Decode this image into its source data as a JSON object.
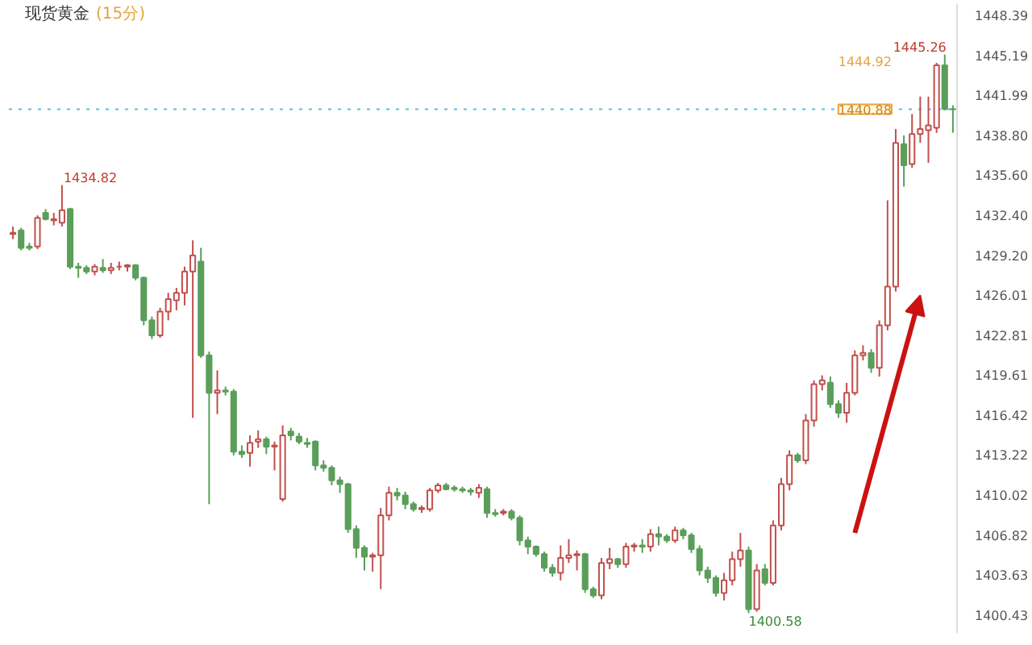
{
  "chart_data": {
    "type": "candlestick",
    "title": "现货黄金",
    "subtitle": "(15分)",
    "categories": [
      null,
      null,
      null,
      null,
      null,
      null,
      null,
      null,
      null,
      null,
      null,
      null,
      null,
      null,
      null,
      null,
      null,
      null,
      null,
      null,
      null,
      null,
      null,
      null,
      null,
      null,
      null,
      null,
      null,
      null,
      null,
      null,
      null,
      null,
      null,
      null,
      null,
      null,
      null,
      null,
      null,
      null,
      null,
      null,
      null,
      null,
      null,
      null,
      null,
      null,
      null,
      null,
      null,
      null,
      null,
      null,
      null,
      null,
      null,
      null,
      null,
      null,
      null,
      null,
      null,
      null,
      null,
      null,
      null,
      null,
      null,
      null,
      null,
      null,
      null,
      null,
      null,
      null,
      null,
      null,
      null,
      null,
      null,
      null,
      null,
      null,
      null,
      null,
      null,
      null,
      null,
      null,
      null,
      null,
      null,
      null,
      null,
      null,
      null,
      null,
      null,
      null,
      null,
      null,
      null,
      null,
      null,
      null,
      null,
      null,
      null,
      null,
      null,
      null,
      null,
      null
    ],
    "ohlc": [
      [
        1430.9,
        1431.5,
        1430.5,
        1431.0
      ],
      [
        1431.2,
        1431.4,
        1429.6,
        1429.8
      ],
      [
        1429.9,
        1430.2,
        1429.6,
        1429.8
      ],
      [
        1429.9,
        1432.4,
        1429.7,
        1432.2
      ],
      [
        1432.6,
        1432.9,
        1432.0,
        1432.1
      ],
      [
        1432.0,
        1432.6,
        1431.6,
        1432.1
      ],
      [
        1431.8,
        1434.82,
        1431.5,
        1432.8
      ],
      [
        1432.9,
        1433.0,
        1428.1,
        1428.3
      ],
      [
        1428.3,
        1428.6,
        1427.4,
        1428.2
      ],
      [
        1428.2,
        1428.4,
        1427.7,
        1427.9
      ],
      [
        1427.9,
        1428.5,
        1427.6,
        1428.3
      ],
      [
        1428.2,
        1428.9,
        1427.8,
        1428.0
      ],
      [
        1428.0,
        1428.6,
        1427.7,
        1428.2
      ],
      [
        1428.3,
        1428.7,
        1428.0,
        1428.3
      ],
      [
        1428.3,
        1428.5,
        1427.9,
        1428.4
      ],
      [
        1428.4,
        1428.5,
        1427.2,
        1427.4
      ],
      [
        1427.4,
        1427.5,
        1423.6,
        1424.0
      ],
      [
        1424.0,
        1424.3,
        1422.5,
        1422.8
      ],
      [
        1422.8,
        1425.0,
        1422.6,
        1424.7
      ],
      [
        1424.7,
        1426.2,
        1424.0,
        1425.7
      ],
      [
        1425.6,
        1426.6,
        1424.8,
        1426.2
      ],
      [
        1426.2,
        1428.3,
        1425.2,
        1427.9
      ],
      [
        1427.9,
        1430.4,
        1416.2,
        1429.2
      ],
      [
        1428.7,
        1429.8,
        1421.0,
        1421.2
      ],
      [
        1421.2,
        1421.5,
        1409.3,
        1418.2
      ],
      [
        1418.2,
        1420.0,
        1416.5,
        1418.4
      ],
      [
        1418.4,
        1418.7,
        1418.0,
        1418.3
      ],
      [
        1418.3,
        1418.5,
        1413.2,
        1413.5
      ],
      [
        1413.5,
        1414.0,
        1413.0,
        1413.3
      ],
      [
        1413.4,
        1414.8,
        1412.3,
        1414.2
      ],
      [
        1414.3,
        1415.2,
        1413.8,
        1414.5
      ],
      [
        1414.5,
        1414.7,
        1413.3,
        1413.9
      ],
      [
        1413.9,
        1414.3,
        1412.0,
        1414.0
      ],
      [
        1409.7,
        1415.6,
        1409.5,
        1414.8
      ],
      [
        1415.1,
        1415.4,
        1414.4,
        1414.8
      ],
      [
        1414.7,
        1415.0,
        1414.1,
        1414.3
      ],
      [
        1414.2,
        1414.6,
        1413.8,
        1414.1
      ],
      [
        1414.3,
        1414.4,
        1412.0,
        1412.4
      ],
      [
        1412.4,
        1412.8,
        1411.9,
        1412.2
      ],
      [
        1412.2,
        1412.4,
        1410.8,
        1411.2
      ],
      [
        1411.2,
        1411.5,
        1410.2,
        1410.9
      ],
      [
        1410.9,
        1411.0,
        1407.0,
        1407.3
      ],
      [
        1407.3,
        1407.6,
        1405.0,
        1405.8
      ],
      [
        1405.8,
        1406.0,
        1404.0,
        1405.1
      ],
      [
        1405.1,
        1405.4,
        1403.9,
        1405.2
      ],
      [
        1405.2,
        1409.0,
        1402.5,
        1408.4
      ],
      [
        1408.4,
        1410.7,
        1408.0,
        1410.2
      ],
      [
        1410.2,
        1410.6,
        1409.6,
        1410.0
      ],
      [
        1410.0,
        1410.3,
        1408.9,
        1409.3
      ],
      [
        1409.3,
        1409.5,
        1408.7,
        1408.9
      ],
      [
        1408.9,
        1409.2,
        1408.6,
        1409.0
      ],
      [
        1408.9,
        1410.6,
        1408.7,
        1410.4
      ],
      [
        1410.4,
        1411.0,
        1410.2,
        1410.8
      ],
      [
        1410.8,
        1411.0,
        1410.4,
        1410.5
      ],
      [
        1410.6,
        1410.8,
        1410.3,
        1410.5
      ],
      [
        1410.5,
        1410.7,
        1410.2,
        1410.4
      ],
      [
        1410.4,
        1410.6,
        1410.0,
        1410.3
      ],
      [
        1410.2,
        1410.9,
        1409.8,
        1410.6
      ],
      [
        1410.5,
        1410.7,
        1408.2,
        1408.6
      ],
      [
        1408.6,
        1408.9,
        1408.3,
        1408.5
      ],
      [
        1408.6,
        1408.9,
        1408.4,
        1408.7
      ],
      [
        1408.7,
        1408.9,
        1408.0,
        1408.2
      ],
      [
        1408.2,
        1408.4,
        1406.0,
        1406.4
      ],
      [
        1406.4,
        1406.7,
        1405.3,
        1405.9
      ],
      [
        1405.9,
        1406.0,
        1405.1,
        1405.3
      ],
      [
        1405.3,
        1405.5,
        1403.9,
        1404.2
      ],
      [
        1404.2,
        1404.5,
        1403.5,
        1403.8
      ],
      [
        1403.8,
        1406.0,
        1403.2,
        1405.0
      ],
      [
        1405.0,
        1406.5,
        1404.6,
        1405.2
      ],
      [
        1405.2,
        1405.6,
        1404.0,
        1405.3
      ],
      [
        1405.3,
        1405.4,
        1402.2,
        1402.5
      ],
      [
        1402.5,
        1402.7,
        1401.8,
        1402.0
      ],
      [
        1402.0,
        1405.0,
        1401.7,
        1404.6
      ],
      [
        1404.6,
        1405.8,
        1404.1,
        1404.9
      ],
      [
        1404.9,
        1405.0,
        1404.2,
        1404.5
      ],
      [
        1404.5,
        1406.2,
        1404.2,
        1405.9
      ],
      [
        1405.9,
        1406.2,
        1405.5,
        1406.0
      ],
      [
        1406.0,
        1406.5,
        1405.4,
        1405.9
      ],
      [
        1405.9,
        1407.3,
        1405.5,
        1406.9
      ],
      [
        1406.9,
        1407.5,
        1406.0,
        1406.7
      ],
      [
        1406.7,
        1406.9,
        1406.2,
        1406.4
      ],
      [
        1406.4,
        1407.5,
        1406.2,
        1407.2
      ],
      [
        1407.2,
        1407.4,
        1406.5,
        1406.8
      ],
      [
        1406.8,
        1407.0,
        1405.4,
        1405.7
      ],
      [
        1405.7,
        1406.0,
        1403.6,
        1404.0
      ],
      [
        1404.0,
        1404.3,
        1403.0,
        1403.4
      ],
      [
        1403.4,
        1403.6,
        1401.9,
        1402.2
      ],
      [
        1402.2,
        1403.8,
        1401.6,
        1403.2
      ],
      [
        1403.2,
        1405.5,
        1402.8,
        1404.9
      ],
      [
        1404.9,
        1407.0,
        1404.3,
        1405.6
      ],
      [
        1405.6,
        1405.9,
        1400.58,
        1400.9
      ],
      [
        1400.9,
        1404.5,
        1400.7,
        1404.0
      ],
      [
        1404.1,
        1404.5,
        1402.8,
        1403.0
      ],
      [
        1403.0,
        1408.0,
        1402.8,
        1407.6
      ],
      [
        1407.6,
        1411.4,
        1407.2,
        1410.9
      ],
      [
        1410.9,
        1413.6,
        1410.4,
        1413.2
      ],
      [
        1413.2,
        1413.4,
        1412.6,
        1412.8
      ],
      [
        1412.8,
        1416.5,
        1412.5,
        1416.0
      ],
      [
        1416.0,
        1419.2,
        1415.5,
        1418.9
      ],
      [
        1418.9,
        1419.6,
        1418.4,
        1419.2
      ],
      [
        1419.0,
        1419.5,
        1417.0,
        1417.3
      ],
      [
        1417.3,
        1417.6,
        1416.2,
        1416.6
      ],
      [
        1416.6,
        1419.0,
        1415.8,
        1418.2
      ],
      [
        1418.2,
        1421.6,
        1418.0,
        1421.2
      ],
      [
        1421.2,
        1422.0,
        1420.8,
        1421.4
      ],
      [
        1421.4,
        1421.7,
        1419.8,
        1420.2
      ],
      [
        1420.2,
        1424.0,
        1419.5,
        1423.6
      ],
      [
        1423.6,
        1433.6,
        1423.2,
        1426.7
      ],
      [
        1426.7,
        1439.3,
        1426.3,
        1438.2
      ],
      [
        1438.1,
        1438.8,
        1434.7,
        1436.4
      ],
      [
        1436.5,
        1440.5,
        1436.2,
        1438.9
      ],
      [
        1438.9,
        1441.9,
        1438.2,
        1439.3
      ],
      [
        1439.2,
        1441.9,
        1436.6,
        1439.6
      ],
      [
        1439.4,
        1444.6,
        1439.0,
        1444.4
      ],
      [
        1444.4,
        1445.26,
        1440.8,
        1440.9
      ],
      [
        1440.9,
        1441.2,
        1439.0,
        1440.88
      ]
    ],
    "colors": [
      "#c0504d",
      "#5a9e5a",
      "#5a9e5a",
      "#c0504d",
      "#5a9e5a",
      "#c0504d",
      "#c0504d",
      "#5a9e5a",
      "#5a9e5a",
      "#5a9e5a",
      "#c0504d",
      "#5a9e5a",
      "#c0504d",
      "#c0504d",
      "#c0504d",
      "#5a9e5a",
      "#5a9e5a",
      "#5a9e5a",
      "#c0504d",
      "#c0504d",
      "#c0504d",
      "#c0504d",
      "#c0504d",
      "#5a9e5a",
      "#5a9e5a",
      "#c0504d",
      "#5a9e5a",
      "#5a9e5a",
      "#5a9e5a",
      "#c0504d",
      "#c0504d",
      "#5a9e5a",
      "#c0504d",
      "#c0504d",
      "#5a9e5a",
      "#5a9e5a",
      "#5a9e5a",
      "#5a9e5a",
      "#5a9e5a",
      "#5a9e5a",
      "#5a9e5a",
      "#5a9e5a",
      "#5a9e5a",
      "#5a9e5a",
      "#c0504d",
      "#c0504d",
      "#c0504d",
      "#5a9e5a",
      "#5a9e5a",
      "#5a9e5a",
      "#c0504d",
      "#c0504d",
      "#c0504d",
      "#5a9e5a",
      "#5a9e5a",
      "#5a9e5a",
      "#5a9e5a",
      "#c0504d",
      "#5a9e5a",
      "#5a9e5a",
      "#c0504d",
      "#5a9e5a",
      "#5a9e5a",
      "#5a9e5a",
      "#5a9e5a",
      "#5a9e5a",
      "#5a9e5a",
      "#c0504d",
      "#c0504d",
      "#c0504d",
      "#5a9e5a",
      "#5a9e5a",
      "#c0504d",
      "#c0504d",
      "#5a9e5a",
      "#c0504d",
      "#c0504d",
      "#5a9e5a",
      "#c0504d",
      "#5a9e5a",
      "#5a9e5a",
      "#c0504d",
      "#5a9e5a",
      "#5a9e5a",
      "#5a9e5a",
      "#5a9e5a",
      "#5a9e5a",
      "#c0504d",
      "#c0504d",
      "#c0504d",
      "#5a9e5a",
      "#c0504d",
      "#5a9e5a",
      "#c0504d",
      "#c0504d",
      "#c0504d",
      "#5a9e5a",
      "#c0504d",
      "#c0504d",
      "#c0504d",
      "#5a9e5a",
      "#5a9e5a",
      "#c0504d",
      "#c0504d",
      "#c0504d",
      "#5a9e5a",
      "#c0504d",
      "#c0504d",
      "#c0504d",
      "#5a9e5a",
      "#c0504d",
      "#c0504d",
      "#c0504d",
      "#c0504d",
      "#5a9e5a",
      "#5a9e5a"
    ],
    "ylim": [
      1399.0,
      1449.3
    ],
    "yticks": [
      {
        "value": 1448.39,
        "label": "1448.39"
      },
      {
        "value": 1445.19,
        "label": "1445.19"
      },
      {
        "value": 1441.99,
        "label": "1441.99"
      },
      {
        "value": 1438.8,
        "label": "1438.80"
      },
      {
        "value": 1435.6,
        "label": "1435.60"
      },
      {
        "value": 1432.4,
        "label": "1432.40"
      },
      {
        "value": 1429.2,
        "label": "1429.20"
      },
      {
        "value": 1426.01,
        "label": "1426.01"
      },
      {
        "value": 1422.81,
        "label": "1422.81"
      },
      {
        "value": 1419.61,
        "label": "1419.61"
      },
      {
        "value": 1416.42,
        "label": "1416.42"
      },
      {
        "value": 1413.22,
        "label": "1413.22"
      },
      {
        "value": 1410.02,
        "label": "1410.02"
      },
      {
        "value": 1406.82,
        "label": "1406.82"
      },
      {
        "value": 1403.63,
        "label": "1403.63"
      },
      {
        "value": 1400.43,
        "label": "1400.43"
      }
    ],
    "tick_labels": "y",
    "grid": false,
    "ref_lines": [
      {
        "axis": "y",
        "value": 1440.88,
        "label": "1440.88",
        "color": "#5bc0de",
        "line_style": "dotted"
      }
    ],
    "annotations": [
      "1434.82",
      "1445.26",
      "1400.58",
      "1444.92"
    ]
  }
}
